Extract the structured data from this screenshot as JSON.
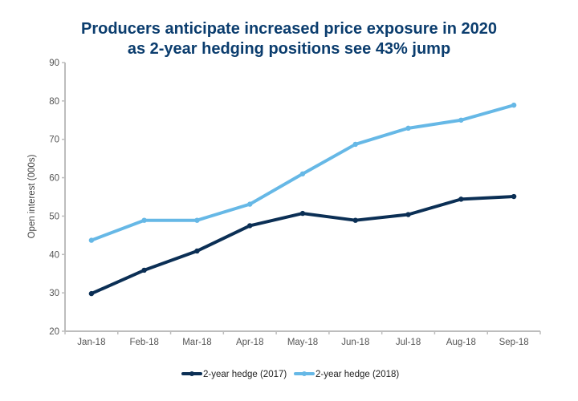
{
  "chart_data": {
    "type": "line",
    "title": "Producers anticipate increased price exposure in 2020",
    "subtitle": "as 2-year hedging positions see 43% jump",
    "xlabel": "",
    "ylabel": "Open interest (000s)",
    "categories": [
      "Jan-18",
      "Feb-18",
      "Mar-18",
      "Apr-18",
      "May-18",
      "Jun-18",
      "Jul-18",
      "Aug-18",
      "Sep-18"
    ],
    "ylim": [
      20,
      90
    ],
    "yticks": [
      20,
      30,
      40,
      50,
      60,
      70,
      80,
      90
    ],
    "grid": false,
    "legend_position": "bottom",
    "series": [
      {
        "name": "2-year hedge (2017)",
        "color": "#0b2f55",
        "values": [
          29.8,
          35.9,
          40.9,
          47.5,
          50.7,
          48.9,
          50.4,
          54.4,
          55.1
        ]
      },
      {
        "name": "2-year hedge (2018)",
        "color": "#66b8e6",
        "values": [
          43.7,
          48.9,
          48.9,
          53.1,
          61.0,
          68.7,
          72.9,
          75.0,
          78.9
        ]
      }
    ]
  }
}
